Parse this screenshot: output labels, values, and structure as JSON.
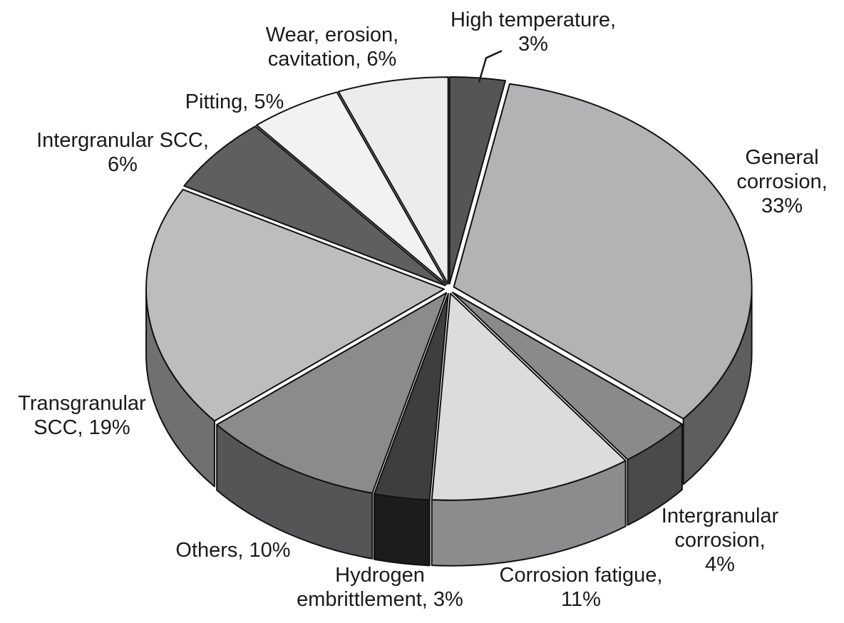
{
  "chart_data": {
    "type": "pie",
    "style": "3d-exploded",
    "title": "",
    "slices": [
      {
        "label_lines": [
          "High temperature,",
          "3%"
        ],
        "category": "High temperature",
        "value": 3,
        "top_color": "#555555",
        "side_color": "#2e2e2e"
      },
      {
        "label_lines": [
          "General",
          "corrosion,",
          "33%"
        ],
        "category": "General corrosion",
        "value": 33,
        "top_color": "#b3b3b6",
        "side_color": "#5e5e60"
      },
      {
        "label_lines": [
          "Intergranular",
          "corrosion,",
          "4%"
        ],
        "category": "Intergranular corrosion",
        "value": 4,
        "top_color": "#8a8a8c",
        "side_color": "#4a4a4c"
      },
      {
        "label_lines": [
          "Corrosion fatigue,",
          "11%"
        ],
        "category": "Corrosion fatigue",
        "value": 11,
        "top_color": "#dcdcde",
        "side_color": "#8c8c8e"
      },
      {
        "label_lines": [
          "Hydrogen",
          "embrittlement, 3%"
        ],
        "category": "Hydrogen embrittlement",
        "value": 3,
        "top_color": "#3e3e40",
        "side_color": "#1c1c1c"
      },
      {
        "label_lines": [
          "Others, 10%"
        ],
        "category": "Others",
        "value": 10,
        "top_color": "#8b8b8e",
        "side_color": "#555557"
      },
      {
        "label_lines": [
          "Transgranular",
          "SCC, 19%"
        ],
        "category": "Transgranular SCC",
        "value": 19,
        "top_color": "#bdbdbf",
        "side_color": "#707072"
      },
      {
        "label_lines": [
          "Intergranular SCC,",
          "6%"
        ],
        "category": "Intergranular SCC",
        "value": 6,
        "top_color": "#5f5f61",
        "side_color": "#3a3a3a"
      },
      {
        "label_lines": [
          "Pitting, 5%"
        ],
        "category": "Pitting",
        "value": 5,
        "top_color": "#f2f2f2",
        "side_color": "#a0a0a0"
      },
      {
        "label_lines": [
          "Wear, erosion,",
          "cavitation, 6%"
        ],
        "category": "Wear, erosion, cavitation",
        "value": 6,
        "top_color": "#ececec",
        "side_color": "#9a9a9a"
      }
    ]
  }
}
